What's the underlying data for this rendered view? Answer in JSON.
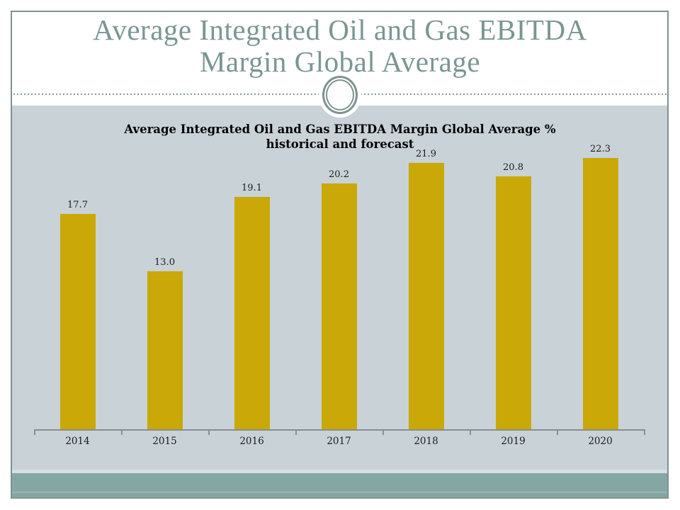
{
  "slide": {
    "title_line1": "Average Integrated Oil and Gas EBITDA",
    "title_line2": "Margin Global Average",
    "title_color": "#7A9693",
    "frame_border_color": "#7E938F",
    "content_band_color": "#C9D2D7",
    "footer_band_color": "#85A7A3"
  },
  "chart_data": {
    "type": "bar",
    "title": "Average Integrated Oil and Gas EBITDA Margin Global Average % historical and forecast",
    "title_line1": "Average Integrated Oil and Gas EBITDA Margin Global Average %",
    "title_line2": "historical and forecast",
    "categories": [
      "2014",
      "2015",
      "2016",
      "2017",
      "2018",
      "2019",
      "2020"
    ],
    "values": [
      17.7,
      13.0,
      19.1,
      20.2,
      21.9,
      20.8,
      22.3
    ],
    "data_labels": [
      "17.7",
      "13.0",
      "19.1",
      "20.2",
      "21.9",
      "20.8",
      "22.3"
    ],
    "bar_color": "#C9A807",
    "xlabel": "",
    "ylabel": "",
    "ylim": [
      0,
      23.6
    ],
    "grid": false,
    "legend": "none",
    "data_label_position": "above-bar"
  }
}
